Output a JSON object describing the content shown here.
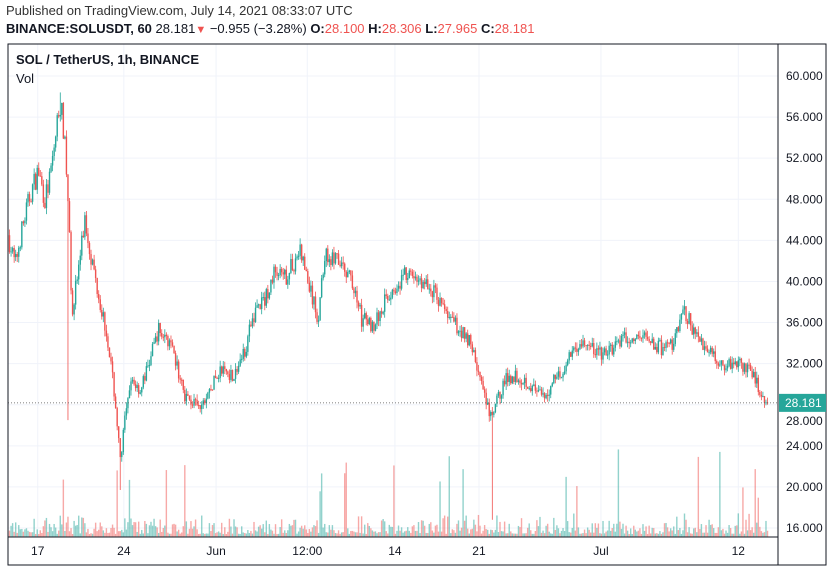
{
  "header": {
    "published": "Published on TradingView.com, July 14, 2021 08:33:07 UTC",
    "symbol": "BINANCE:SOLUSDT, 60",
    "last": "28.181",
    "change": "−0.955 (−3.28%)",
    "o_label": "O:",
    "o": "28.100",
    "h_label": "H:",
    "h": "28.306",
    "l_label": "L:",
    "l": "27.965",
    "c_label": "C:",
    "c": "28.181"
  },
  "legend": {
    "title": "SOL / TetherUS, 1h, BINANCE",
    "vol": "Vol"
  },
  "colors": {
    "up": "#26a69a",
    "down": "#ef5350",
    "grid": "#f0f3fa"
  },
  "chart_data": {
    "type": "candlestick",
    "title": "SOL / TetherUS, 1h, BINANCE",
    "ylim": [
      14.5,
      61.5
    ],
    "y_ticks": [
      "60.000",
      "56.000",
      "52.000",
      "48.000",
      "44.000",
      "40.000",
      "36.000",
      "32.000",
      "28.000",
      "24.000",
      "20.000",
      "16.000"
    ],
    "x_ticks": [
      {
        "label": "17",
        "hour": 58
      },
      {
        "label": "24",
        "hour": 226
      },
      {
        "label": "Jun",
        "hour": 406
      },
      {
        "label": "12:00",
        "hour": 584
      },
      {
        "label": "14",
        "hour": 755
      },
      {
        "label": "21",
        "hour": 919
      },
      {
        "label": "Jul",
        "hour": 1157
      },
      {
        "label": "12",
        "hour": 1425
      }
    ],
    "hours_total": 1482,
    "last_price": "28.181",
    "last_price_value": 28.181,
    "price_path": [
      [
        0,
        44.5
      ],
      [
        14,
        41.6
      ],
      [
        27,
        45
      ],
      [
        43,
        48.4
      ],
      [
        59,
        50.8
      ],
      [
        72,
        48
      ],
      [
        82,
        50
      ],
      [
        92,
        53.8
      ],
      [
        101,
        57.7
      ],
      [
        109,
        54.7
      ],
      [
        117,
        48
      ],
      [
        125,
        37.2
      ],
      [
        137,
        41
      ],
      [
        150,
        46
      ],
      [
        164,
        42
      ],
      [
        180,
        38
      ],
      [
        195,
        34.3
      ],
      [
        209,
        28.4
      ],
      [
        219,
        22.6
      ],
      [
        228,
        26.5
      ],
      [
        242,
        30.4
      ],
      [
        258,
        29.4
      ],
      [
        277,
        32.3
      ],
      [
        293,
        35.3
      ],
      [
        312,
        34.3
      ],
      [
        326,
        32.3
      ],
      [
        345,
        28.9
      ],
      [
        375,
        27.5
      ],
      [
        394,
        29.4
      ],
      [
        414,
        31.4
      ],
      [
        443,
        30.9
      ],
      [
        462,
        33.3
      ],
      [
        482,
        37.2
      ],
      [
        501,
        38.2
      ],
      [
        521,
        41.1
      ],
      [
        537,
        40.1
      ],
      [
        550,
        41.1
      ],
      [
        570,
        43
      ],
      [
        589,
        39.2
      ],
      [
        605,
        36.2
      ],
      [
        618,
        42.6
      ],
      [
        638,
        42.1
      ],
      [
        658,
        41.1
      ],
      [
        677,
        39.2
      ],
      [
        691,
        36.2
      ],
      [
        716,
        35.8
      ],
      [
        736,
        38.2
      ],
      [
        755,
        39.6
      ],
      [
        775,
        40.6
      ],
      [
        804,
        40.1
      ],
      [
        827,
        39.2
      ],
      [
        843,
        38.2
      ],
      [
        862,
        36.2
      ],
      [
        882,
        35.3
      ],
      [
        901,
        34.3
      ],
      [
        917,
        31.4
      ],
      [
        931,
        28.4
      ],
      [
        944,
        26.5
      ],
      [
        954,
        28.4
      ],
      [
        970,
        30.4
      ],
      [
        989,
        30.9
      ],
      [
        1009,
        30.4
      ],
      [
        1028,
        29.4
      ],
      [
        1048,
        28.4
      ],
      [
        1067,
        30.9
      ],
      [
        1087,
        31.4
      ],
      [
        1106,
        33.8
      ],
      [
        1126,
        33.8
      ],
      [
        1145,
        33.3
      ],
      [
        1165,
        32.8
      ],
      [
        1184,
        33.8
      ],
      [
        1204,
        34.3
      ],
      [
        1223,
        34.3
      ],
      [
        1243,
        34.8
      ],
      [
        1262,
        33.8
      ],
      [
        1282,
        33.3
      ],
      [
        1301,
        34.3
      ],
      [
        1321,
        37.2
      ],
      [
        1340,
        34.8
      ],
      [
        1360,
        33.8
      ],
      [
        1379,
        32.8
      ],
      [
        1399,
        31.8
      ],
      [
        1418,
        32.3
      ],
      [
        1438,
        31.8
      ],
      [
        1457,
        30.4
      ],
      [
        1481,
        28.181
      ]
    ],
    "wick_lows": [
      [
        117,
        26.5
      ],
      [
        219,
        19.7
      ],
      [
        944,
        16.8
      ]
    ],
    "wick_highs": [
      [
        101,
        58.4
      ],
      [
        570,
        44.2
      ],
      [
        1321,
        38.2
      ]
    ]
  }
}
